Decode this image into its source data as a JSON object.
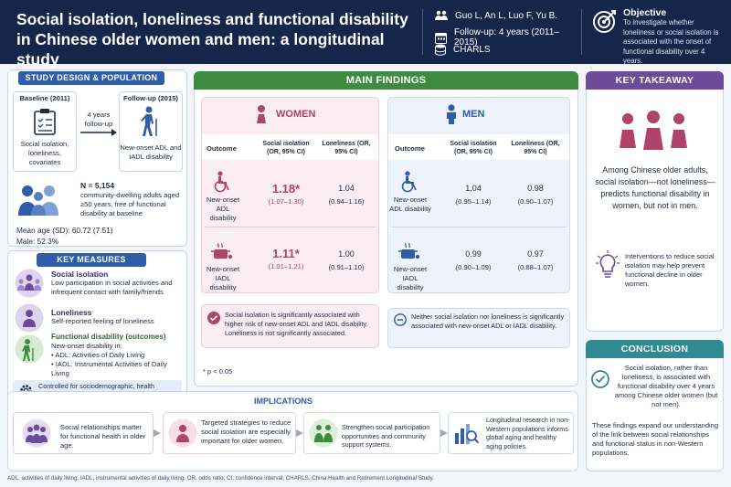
{
  "header": {
    "title": "Social isolation, loneliness and functional disability in Chinese older women and men: a longitudinal study",
    "authors": "Guo L, An L, Luo F, Yu B.",
    "followup": "Follow-up: 4 years (2011–2015)",
    "dataset": "CHARLS",
    "objective_title": "Objective",
    "objective_text": "To investigate whether loneliness or social isolation is associated with the onset of functional disability over 4 years."
  },
  "study_design": {
    "banner": "STUDY DESIGN & POPULATION",
    "baseline_title": "Baseline (2011)",
    "baseline_text": "Social isolation, loneliness, covariates",
    "arrow_text": "4 years follow-up",
    "followup_title": "Follow-up (2015)",
    "followup_text": "New-onset ADL and IADL disability",
    "n": "N = 5,154",
    "n_desc": "community-dwelling adults aged ≥50 years, free of functional disability at baseline",
    "mean_age": "Mean age (SD): 60.72 (7.51)",
    "male": "Male: 52.3%"
  },
  "key_measures": {
    "banner": "KEY MEASURES",
    "items": [
      {
        "title": "Social isolation",
        "text": "Low participation in social activities and infrequent contact with family/friends"
      },
      {
        "title": "Loneliness",
        "text": "Self-reported feeling of loneliness"
      },
      {
        "title": "Functional disability (outcomes)",
        "text": "New-onset disability in:",
        "bullets": [
          "ADL: Activities of Daily Living",
          "IADL: Instrumental Activities of Daily Living"
        ]
      }
    ],
    "controlled": "Controlled for sociodemographic, health behaviors, and health status covariates"
  },
  "main_findings": {
    "banner": "MAIN FINDINGS",
    "women": {
      "label": "WOMEN",
      "col_outcome": "Outcome",
      "col_si": "Social isolation (OR, 95% CI)",
      "col_lo": "Loneliness (OR, 95% CI)",
      "rows": [
        {
          "outcome": "New-onset ADL disability",
          "si_or": "1.18*",
          "si_ci": "(1.07–1.30)",
          "lo_or": "1.04",
          "lo_ci": "(0.94–1.16)"
        },
        {
          "outcome": "New-onset IADL disability",
          "si_or": "1.11*",
          "si_ci": "(1.01–1.21)",
          "lo_or": "1.00",
          "lo_ci": "(0.91–1.10)"
        }
      ],
      "note": "Social isolation is significantly associated with higher risk of new-onset ADL and IADL disability. Loneliness is not significantly associated."
    },
    "men": {
      "label": "MEN",
      "col_outcome": "Outcome",
      "col_si": "Social isolation (OR, 95% CI)",
      "col_lo": "Loneliness (OR, 95% CI)",
      "rows": [
        {
          "outcome": "New-onset ADL disability",
          "si_or": "1.04",
          "si_ci": "(0.95–1.14)",
          "lo_or": "0.98",
          "lo_ci": "(0.90–1.07)"
        },
        {
          "outcome": "New-onset IADL disability",
          "si_or": "0.99",
          "si_ci": "(0.90–1.09)",
          "lo_or": "0.97",
          "lo_ci": "(0.88–1.07)"
        }
      ],
      "note": "Neither social isolation nor loneliness is significantly associated with new-onset ADL or IADL disability."
    },
    "footnote": "* p < 0.05"
  },
  "takeaway": {
    "banner": "KEY TAKEAWAY",
    "text": "Among Chinese older adults, social isolation—not loneliness—predicts functional disability in women, but not in men.",
    "intervention": "Interventions to reduce social isolation may help prevent functional decline in older women."
  },
  "conclusion": {
    "banner": "CONCLUSION",
    "text1": "Social isolation, rather than loneliness, is associated with functional disability over 4 years among Chinese older women (but not men).",
    "text2": "These findings expand our understanding of the link between social relationships and functional status in non-Western populations."
  },
  "implications": {
    "title": "IMPLICATIONS",
    "items": [
      "Social relationships matter for functional health in older age.",
      "Targeted strategies to reduce social isolation are especially important for older women.",
      "Strengthen social participation opportunities and community support systems.",
      "Longitudinal research in non-Western populations informs global aging and healthy aging policies."
    ]
  },
  "footer": "ADL, activities of daily living; IADL, instrumental activities of daily living; OR, odds ratio; CI, confidence interval; CHARLS, China Health and Retirement Longitudinal Study.",
  "colors": {
    "navy": "#16254a",
    "green": "#3e8b3f",
    "purple": "#6b4b9a",
    "teal": "#2f8a91",
    "blue": "#2f5da8",
    "women": "#b0436a",
    "men": "#2f5da8"
  }
}
